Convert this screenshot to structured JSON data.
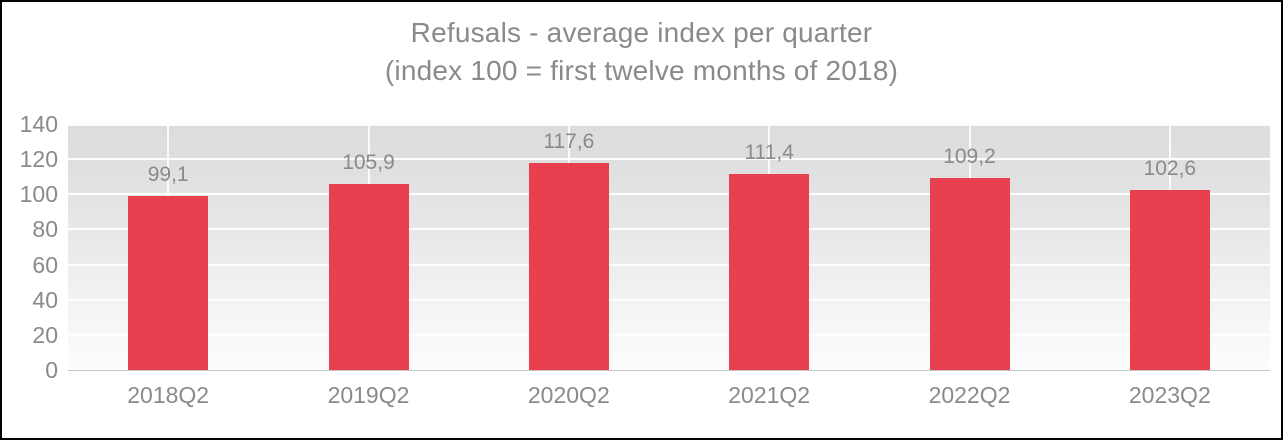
{
  "chart": {
    "title_line1": "Refusals - average index per quarter",
    "title_line2": "(index 100 = first twelve months of 2018)"
  },
  "chart_data": {
    "type": "bar",
    "title": "Refusals - average index per quarter",
    "subtitle": "(index 100 = first twelve months of 2018)",
    "categories": [
      "2018Q2",
      "2019Q2",
      "2020Q2",
      "2021Q2",
      "2022Q2",
      "2023Q2"
    ],
    "values": [
      99.1,
      105.9,
      117.6,
      111.4,
      109.2,
      102.6
    ],
    "value_labels": [
      "99,1",
      "105,9",
      "117,6",
      "111,4",
      "109,2",
      "102,6"
    ],
    "xlabel": "",
    "ylabel": "",
    "ylim": [
      0,
      140
    ],
    "ytick_step": 20,
    "ytick_labels": [
      "0",
      "20",
      "40",
      "60",
      "80",
      "100",
      "120",
      "140"
    ],
    "grid": true,
    "legend_position": "none",
    "colors": {
      "bar": "#e8404f",
      "text": "#8a8a8a",
      "gridline": "#ffffff",
      "axis_line": "#c3c3c3",
      "plot_bg_top": "#dcdcdc",
      "plot_bg_bottom": "#fdfdfd"
    }
  }
}
